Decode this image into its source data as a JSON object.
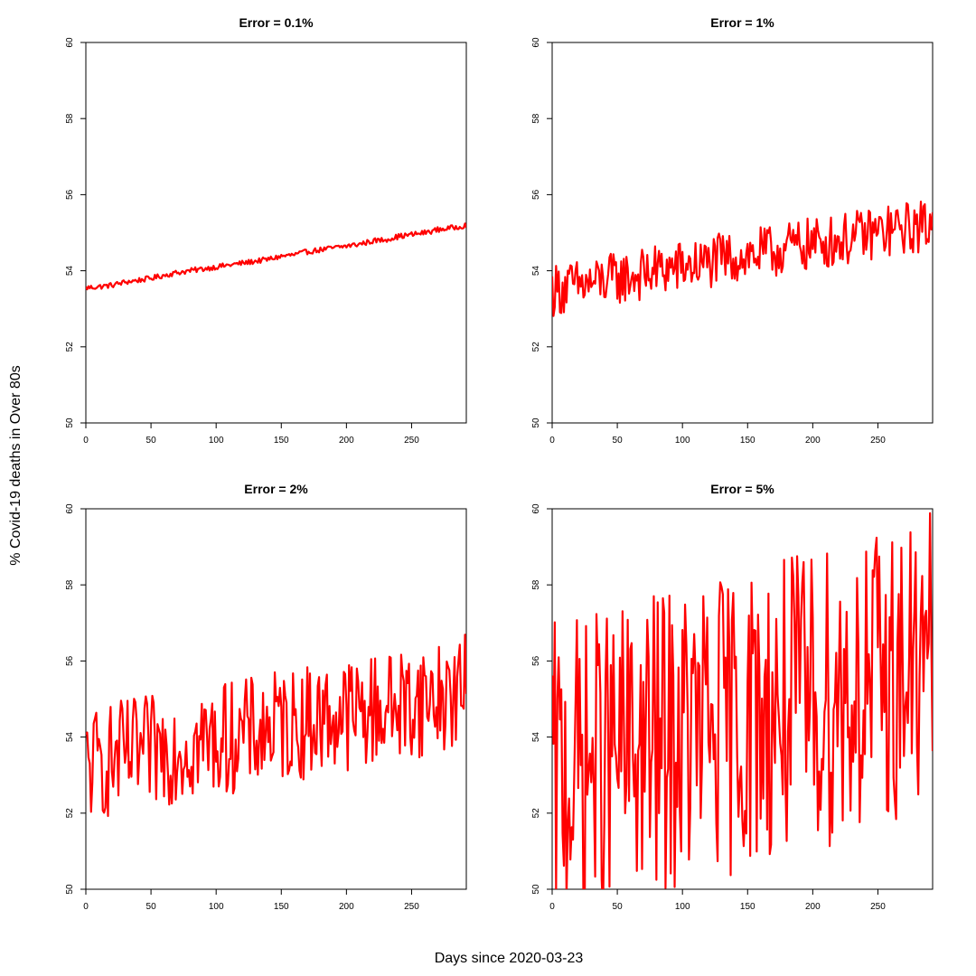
{
  "figure": {
    "xlabel": "Days since 2020-03-23",
    "ylabel": "% Covid-19 deaths in Over 80s",
    "line_color": "#ff0000",
    "background": "#ffffff"
  },
  "chart_data": [
    {
      "type": "line",
      "title": "Error = 0.1%",
      "xlim": [
        0,
        292
      ],
      "ylim": [
        50,
        60
      ],
      "xticks": [
        0,
        50,
        100,
        150,
        200,
        250
      ],
      "yticks": [
        50,
        52,
        54,
        56,
        58,
        60
      ],
      "grid": false,
      "series": [
        {
          "x": [
            0,
            10,
            20,
            30,
            40,
            50,
            60,
            70,
            80,
            90,
            100,
            110,
            120,
            130,
            140,
            150,
            160,
            170,
            180,
            190,
            200,
            210,
            220,
            230,
            240,
            250,
            260,
            270,
            280,
            292
          ],
          "values": [
            53.55,
            53.58,
            53.62,
            53.7,
            53.75,
            53.8,
            53.88,
            53.95,
            54.0,
            54.05,
            54.1,
            54.15,
            54.2,
            54.25,
            54.3,
            54.38,
            54.42,
            54.5,
            54.55,
            54.6,
            54.65,
            54.7,
            54.78,
            54.82,
            54.9,
            54.95,
            55.0,
            55.08,
            55.12,
            55.2
          ],
          "noise_amplitude": 0.07
        }
      ]
    },
    {
      "type": "line",
      "title": "Error = 1%",
      "xlim": [
        0,
        292
      ],
      "ylim": [
        50,
        60
      ],
      "xticks": [
        0,
        50,
        100,
        150,
        200,
        250
      ],
      "yticks": [
        50,
        52,
        54,
        56,
        58,
        60
      ],
      "grid": false,
      "series": [
        {
          "x": [
            0,
            10,
            20,
            30,
            40,
            50,
            60,
            70,
            80,
            90,
            100,
            110,
            120,
            130,
            140,
            150,
            160,
            170,
            180,
            190,
            200,
            210,
            220,
            230,
            240,
            250,
            260,
            270,
            280,
            292
          ],
          "values": [
            53.5,
            53.55,
            53.6,
            53.65,
            53.75,
            53.8,
            53.85,
            53.9,
            54.0,
            54.05,
            54.1,
            54.15,
            54.2,
            54.3,
            54.35,
            54.4,
            54.45,
            54.5,
            54.6,
            54.65,
            54.7,
            54.75,
            54.8,
            54.85,
            54.95,
            55.0,
            55.05,
            55.1,
            55.15,
            55.2
          ],
          "noise_amplitude": 0.7
        }
      ]
    },
    {
      "type": "line",
      "title": "Error = 2%",
      "xlim": [
        0,
        292
      ],
      "ylim": [
        50,
        60
      ],
      "xticks": [
        0,
        50,
        100,
        150,
        200,
        250
      ],
      "yticks": [
        50,
        52,
        54,
        56,
        58,
        60
      ],
      "grid": false,
      "series": [
        {
          "x": [
            0,
            10,
            20,
            30,
            40,
            50,
            60,
            70,
            80,
            90,
            100,
            110,
            120,
            130,
            140,
            150,
            160,
            170,
            180,
            190,
            200,
            210,
            220,
            230,
            240,
            250,
            260,
            270,
            280,
            292
          ],
          "values": [
            53.2,
            53.3,
            53.4,
            53.5,
            53.55,
            53.6,
            53.7,
            53.75,
            53.8,
            53.85,
            53.9,
            54.0,
            54.05,
            54.1,
            54.2,
            54.3,
            54.35,
            54.4,
            54.5,
            54.55,
            54.6,
            54.65,
            54.7,
            54.8,
            54.85,
            54.9,
            55.0,
            55.05,
            55.1,
            55.2
          ],
          "noise_amplitude": 1.5
        }
      ]
    },
    {
      "type": "line",
      "title": "Error = 5%",
      "xlim": [
        0,
        292
      ],
      "ylim": [
        50,
        60
      ],
      "xticks": [
        0,
        50,
        100,
        150,
        200,
        250
      ],
      "yticks": [
        50,
        52,
        54,
        56,
        58,
        60
      ],
      "grid": false,
      "series": [
        {
          "x": [
            0,
            10,
            20,
            30,
            40,
            50,
            60,
            70,
            80,
            90,
            100,
            110,
            120,
            130,
            140,
            150,
            160,
            170,
            180,
            190,
            200,
            210,
            220,
            230,
            240,
            250,
            260,
            270,
            280,
            292
          ],
          "values": [
            53.0,
            53.1,
            53.2,
            53.3,
            53.4,
            53.5,
            53.6,
            53.7,
            53.8,
            53.9,
            54.0,
            54.1,
            54.2,
            54.3,
            54.4,
            54.5,
            54.6,
            54.7,
            54.8,
            54.9,
            55.0,
            55.1,
            55.2,
            55.3,
            55.4,
            55.5,
            55.6,
            55.7,
            55.8,
            55.9
          ],
          "noise_amplitude": 4.0
        }
      ]
    }
  ]
}
